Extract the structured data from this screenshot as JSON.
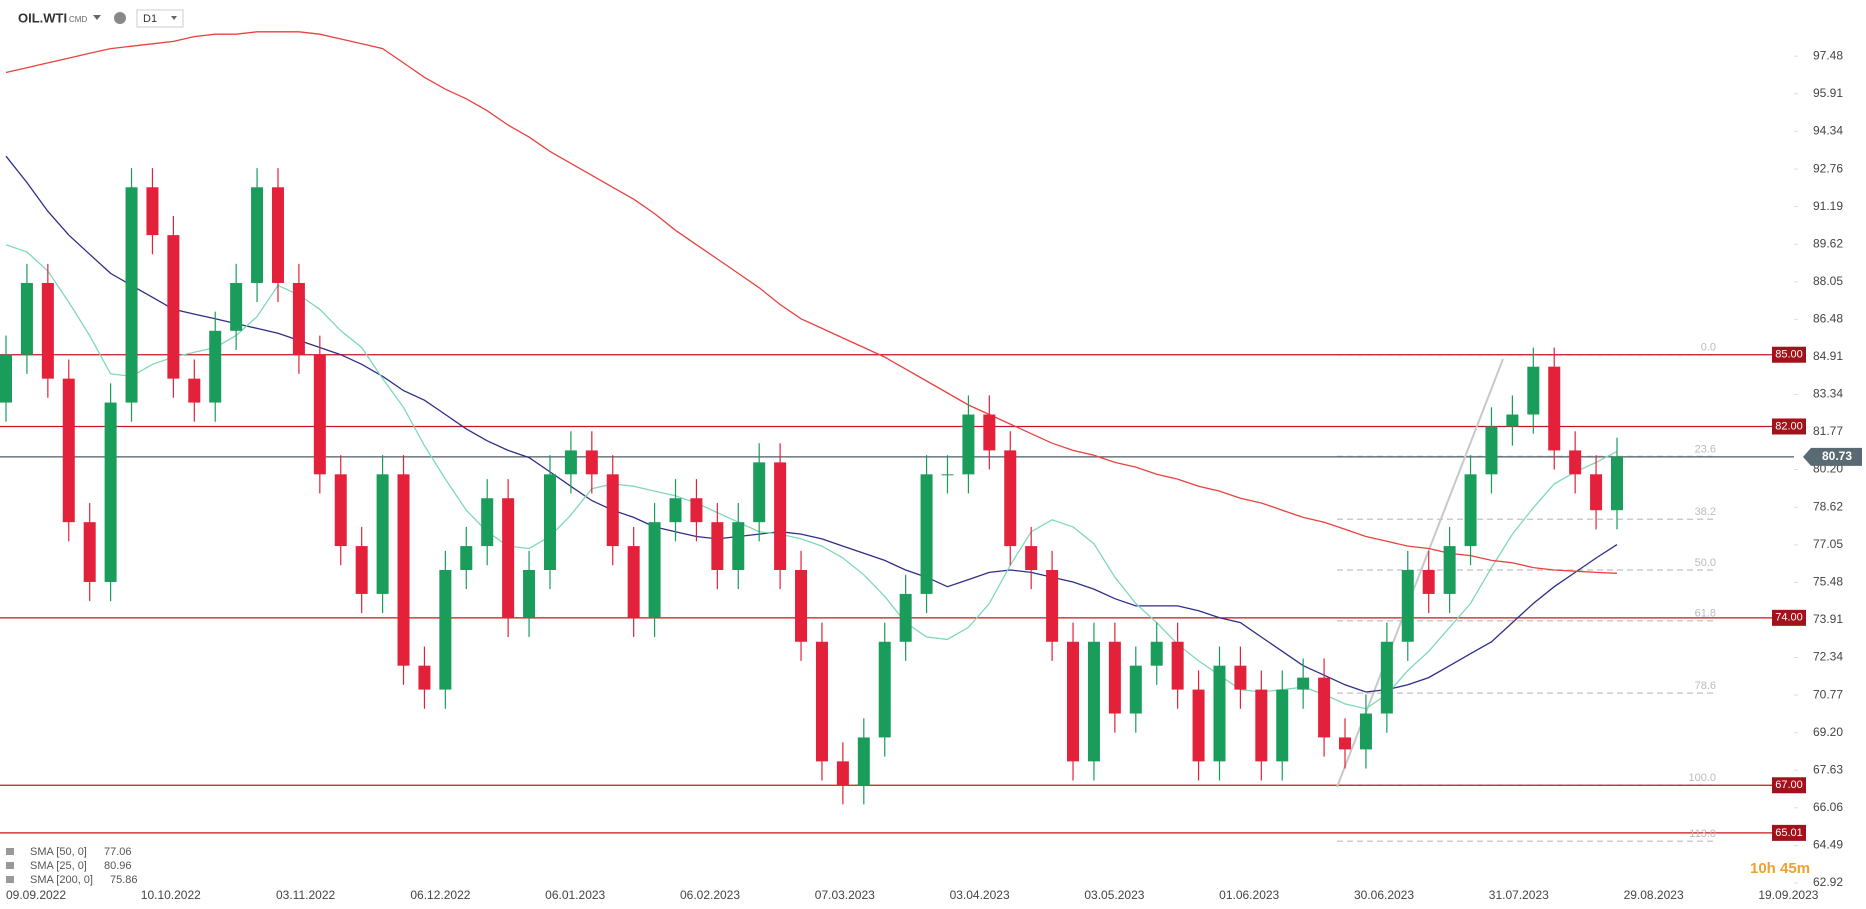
{
  "header": {
    "symbol": "OIL.WTI",
    "market": "CMD",
    "interval": "D1"
  },
  "countdown": "10h 45m",
  "chart_data": {
    "type": "candlestick",
    "ylim": [
      62.58,
      99.83
    ],
    "yticks": [
      97.48,
      95.91,
      94.34,
      92.76,
      91.19,
      89.62,
      88.05,
      86.48,
      84.91,
      83.34,
      81.77,
      {
        "value": 80.2,
        "label": "80.20"
      },
      78.62,
      77.05,
      75.48,
      73.91,
      72.34,
      70.77,
      {
        "value": 69.2,
        "label": "69.20"
      },
      67.63,
      66.06,
      64.49,
      62.92
    ],
    "x_labels": [
      "09.09.2022",
      "10.10.2022",
      "03.11.2022",
      "06.12.2022",
      "06.01.2023",
      "06.02.2023",
      "07.03.2023",
      "03.04.2023",
      "03.05.2023",
      "01.06.2023",
      "30.06.2023",
      "31.07.2023",
      "29.08.2023",
      "19.09.2023"
    ],
    "up_color": "#1a9c5b",
    "down_color": "#e3213a",
    "ohlc": {
      "open": [
        83,
        85,
        88,
        84,
        78,
        75.5,
        83,
        92,
        90,
        84,
        83,
        86,
        88,
        92,
        88,
        85,
        80,
        77,
        75,
        80,
        72,
        71,
        76,
        77,
        79,
        74,
        76,
        80,
        81,
        80,
        77,
        74,
        78,
        79,
        78,
        76,
        78,
        80.5,
        76,
        73,
        68,
        67,
        69,
        73,
        75,
        80,
        80,
        82.5,
        81,
        77,
        76,
        73,
        68,
        73,
        70,
        72,
        73,
        71,
        68,
        72,
        71,
        68,
        71,
        71.5,
        69,
        68.5,
        70,
        73,
        76,
        75,
        77,
        80,
        82,
        82.5,
        84.5,
        81,
        80,
        78.5
      ],
      "high": [
        85.8,
        88.8,
        88.8,
        84.8,
        78.8,
        83.8,
        92.8,
        92.8,
        90.8,
        84.8,
        86.8,
        88.8,
        92.8,
        92.8,
        88.8,
        85.8,
        80.8,
        77.8,
        80.8,
        80.8,
        72.8,
        76.8,
        77.8,
        79.8,
        79.8,
        76.8,
        80.8,
        81.8,
        81.8,
        80.8,
        77.8,
        78.8,
        79.8,
        79.8,
        78.8,
        78.8,
        81.3,
        81.3,
        76.8,
        73.8,
        68.8,
        69.8,
        73.8,
        75.8,
        80.8,
        80.8,
        83.3,
        83.3,
        81.8,
        77.8,
        76.8,
        73.8,
        73.8,
        73.8,
        72.8,
        73.8,
        73.8,
        71.8,
        72.8,
        72.8,
        71.8,
        71.8,
        72.3,
        72.3,
        69.8,
        70.8,
        73.8,
        76.8,
        76.8,
        77.8,
        80.8,
        82.8,
        83.3,
        85.3,
        85.3,
        81.8,
        80.8,
        81.53
      ],
      "low": [
        82.2,
        84.2,
        83.2,
        77.2,
        74.7,
        74.7,
        82.2,
        89.2,
        83.2,
        82.2,
        82.2,
        85.2,
        87.2,
        87.2,
        84.2,
        79.2,
        76.2,
        74.2,
        74.2,
        71.2,
        70.2,
        70.2,
        75.2,
        76.2,
        73.2,
        73.2,
        75.2,
        79.2,
        79.2,
        76.2,
        73.2,
        73.2,
        77.2,
        77.2,
        75.2,
        75.2,
        77.2,
        75.2,
        72.2,
        67.2,
        66.2,
        66.2,
        68.2,
        72.2,
        74.2,
        79.2,
        79.2,
        80.2,
        76.2,
        75.2,
        72.2,
        67.2,
        67.2,
        69.2,
        69.2,
        71.2,
        70.2,
        67.2,
        67.2,
        70.2,
        67.2,
        67.2,
        70.2,
        68.2,
        67.7,
        67.7,
        69.2,
        72.2,
        74.2,
        74.2,
        76.2,
        79.2,
        81.2,
        81.7,
        80.2,
        79.2,
        77.7,
        77.7
      ],
      "close": [
        85,
        88,
        84,
        78,
        75.5,
        83,
        92,
        90,
        84,
        83,
        86,
        88,
        92,
        88,
        85,
        80,
        77,
        75,
        80,
        72,
        71,
        76,
        77,
        79,
        74,
        76,
        80,
        81,
        80,
        77,
        74,
        78,
        79,
        78,
        76,
        78,
        80.5,
        76,
        73,
        68,
        67,
        69,
        73,
        75,
        80,
        80,
        82.5,
        81,
        77,
        76,
        73,
        68,
        73,
        70,
        72,
        73,
        71,
        68,
        72,
        71,
        68,
        71,
        71.5,
        69,
        68.5,
        70,
        73,
        76,
        75,
        77,
        80,
        82,
        82.5,
        84.5,
        81,
        80,
        78.5,
        80.73
      ]
    },
    "series": [
      {
        "name": "SMA [50, 0]",
        "color": "#2e2e8a",
        "values": [
          93.3,
          92.2,
          91.0,
          90.0,
          89.2,
          88.4,
          87.9,
          87.4,
          86.9,
          86.7,
          86.5,
          86.3,
          86.1,
          85.9,
          85.6,
          85.3,
          85.0,
          84.6,
          84.1,
          83.5,
          83.1,
          82.5,
          81.9,
          81.4,
          81.0,
          80.7,
          80.1,
          79.5,
          78.9,
          78.5,
          78.2,
          77.8,
          77.6,
          77.4,
          77.3,
          77.4,
          77.5,
          77.6,
          77.5,
          77.3,
          77.0,
          76.7,
          76.4,
          76.0,
          75.7,
          75.3,
          75.6,
          75.9,
          76.0,
          75.9,
          75.7,
          75.5,
          75.2,
          74.8,
          74.5,
          74.5,
          74.5,
          74.3,
          74.0,
          73.8,
          73.2,
          72.6,
          72.0,
          71.6,
          71.2,
          70.9,
          71.0,
          71.2,
          71.5,
          72.0,
          72.5,
          73.0,
          73.8,
          74.6,
          75.3,
          75.9,
          76.5,
          77.06
        ]
      },
      {
        "name": "SMA [25, 0]",
        "color": "#7fd8b8",
        "values": [
          89.6,
          89.3,
          88.5,
          87.2,
          85.8,
          84.2,
          84.1,
          84.6,
          84.9,
          85.1,
          85.3,
          85.8,
          86.6,
          87.9,
          87.5,
          86.9,
          86.0,
          85.3,
          84.0,
          82.8,
          81.2,
          79.8,
          78.5,
          77.6,
          77.0,
          76.9,
          77.4,
          78.3,
          79.4,
          79.6,
          79.5,
          79.3,
          79.1,
          78.8,
          78.4,
          78.0,
          77.6,
          77.5,
          77.3,
          77.0,
          76.5,
          75.8,
          74.9,
          73.8,
          73.2,
          73.1,
          73.6,
          74.6,
          76.2,
          77.6,
          78.1,
          77.8,
          77.1,
          75.7,
          74.6,
          73.8,
          72.9,
          72.2,
          71.6,
          71.0,
          70.9,
          71.0,
          71.1,
          70.8,
          70.4,
          70.2,
          70.8,
          71.8,
          72.6,
          73.6,
          74.6,
          76.1,
          77.5,
          78.6,
          79.6,
          80.1,
          80.5,
          80.96
        ]
      },
      {
        "name": "SMA [200, 0]",
        "color": "#e8423f",
        "values": [
          96.8,
          97.0,
          97.2,
          97.4,
          97.6,
          97.8,
          97.9,
          98.0,
          98.1,
          98.3,
          98.4,
          98.4,
          98.5,
          98.5,
          98.5,
          98.4,
          98.2,
          98.0,
          97.8,
          97.2,
          96.6,
          96.1,
          95.7,
          95.2,
          94.6,
          94.1,
          93.5,
          93.0,
          92.5,
          92.0,
          91.5,
          90.9,
          90.2,
          89.6,
          89.0,
          88.4,
          87.8,
          87.1,
          86.5,
          86.1,
          85.7,
          85.3,
          84.9,
          84.4,
          83.9,
          83.4,
          82.9,
          82.5,
          82.1,
          81.7,
          81.3,
          81.0,
          80.8,
          80.5,
          80.3,
          80.0,
          79.8,
          79.5,
          79.3,
          79.0,
          78.8,
          78.5,
          78.2,
          78.0,
          77.7,
          77.4,
          77.2,
          77.0,
          76.9,
          76.7,
          76.6,
          76.4,
          76.3,
          76.1,
          76.0,
          75.95,
          75.9,
          75.86
        ]
      }
    ],
    "levels": [
      {
        "value": 85,
        "label": "85.00"
      },
      {
        "value": 82,
        "label": "82.00"
      },
      {
        "value": 74,
        "label": "74.00"
      },
      {
        "value": 67,
        "label": "67.00"
      },
      65.01
    ],
    "level_color": "#c4161c",
    "current_price": 80.73,
    "fibonacci": [
      {
        "price": 85,
        "ratio": "0.0"
      },
      {
        "price": 80.75,
        "ratio": "23.6"
      },
      {
        "price": 78.12,
        "ratio": "38.2"
      },
      {
        "price": 76,
        "ratio": "50.0"
      },
      {
        "price": 73.88,
        "ratio": "61.8"
      },
      {
        "price": 70.85,
        "ratio": "78.6"
      },
      {
        "price": 67,
        "ratio": "100.0"
      },
      {
        "price": 64.66,
        "ratio": "113.0"
      }
    ]
  }
}
